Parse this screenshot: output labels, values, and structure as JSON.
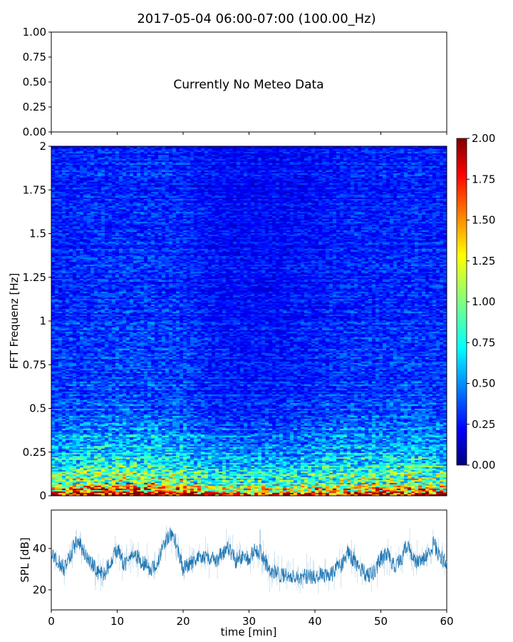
{
  "chart_data": [
    {
      "type": "line",
      "title": "2017-05-04 06:00-07:00 (100.00_Hz)",
      "annotation": "Currently No Meteo Data",
      "ylim": [
        0,
        1
      ],
      "yticks": [
        "0.00",
        "0.25",
        "0.50",
        "0.75",
        "1.00"
      ],
      "xlim": [
        0,
        60
      ],
      "series": []
    },
    {
      "type": "heatmap",
      "ylabel": "FFT Frequenz [Hz]",
      "ylim": [
        0,
        2
      ],
      "yticks": [
        "0",
        "0.25",
        "0.5",
        "0.75",
        "1",
        "1.25",
        "1.5",
        "1.75",
        "2"
      ],
      "xlim": [
        0,
        60
      ],
      "colormap": "jet",
      "colorbar": {
        "range": [
          0,
          2
        ],
        "ticks": [
          "0.00",
          "0.25",
          "0.50",
          "0.75",
          "1.00",
          "1.25",
          "1.50",
          "1.75",
          "2.00"
        ]
      },
      "freq_profile": {
        "freq": [
          0,
          0.03,
          0.08,
          0.15,
          0.25,
          0.4,
          0.6,
          1.0,
          1.5,
          2.0
        ],
        "value": [
          1.8,
          1.4,
          1.0,
          0.75,
          0.6,
          0.45,
          0.38,
          0.32,
          0.3,
          0.3
        ]
      },
      "time_profile": {
        "time": [
          0,
          5,
          10,
          15,
          20,
          25,
          30,
          35,
          40,
          45,
          50,
          55,
          60
        ],
        "factor": [
          1.0,
          1.05,
          1.1,
          1.1,
          1.05,
          0.85,
          0.85,
          0.85,
          0.9,
          1.0,
          1.0,
          1.05,
          1.0
        ]
      }
    },
    {
      "type": "line",
      "xlabel": "time [min]",
      "ylabel": "SPL [dB]",
      "xlim": [
        0,
        60
      ],
      "ylim": [
        10.3,
        58.6
      ],
      "xticks": [
        "0",
        "10",
        "20",
        "30",
        "40",
        "50",
        "60"
      ],
      "yticks": [
        "20",
        "40"
      ],
      "color": "#1f77b4",
      "x": [
        0,
        1,
        2,
        3,
        4,
        5,
        6,
        7,
        8,
        9,
        10,
        11,
        12,
        13,
        14,
        15,
        16,
        17,
        18,
        19,
        20,
        21,
        22,
        23,
        24,
        25,
        26,
        27,
        28,
        29,
        30,
        31,
        32,
        33,
        34,
        35,
        36,
        37,
        38,
        39,
        40,
        41,
        42,
        43,
        44,
        45,
        46,
        47,
        48,
        49,
        50,
        51,
        52,
        53,
        54,
        55,
        56,
        57,
        58,
        59,
        60
      ],
      "y": [
        38,
        34,
        30,
        38,
        44,
        38,
        33,
        29,
        27,
        34,
        40,
        32,
        36,
        36,
        33,
        30,
        33,
        40,
        48,
        42,
        30,
        33,
        35,
        37,
        35,
        34,
        38,
        40,
        34,
        37,
        35,
        40,
        37,
        30,
        28,
        27,
        26,
        27,
        26,
        27,
        26,
        27,
        26,
        29,
        32,
        38,
        34,
        30,
        27,
        29,
        35,
        38,
        32,
        34,
        42,
        35,
        33,
        36,
        42,
        36,
        33
      ]
    }
  ]
}
